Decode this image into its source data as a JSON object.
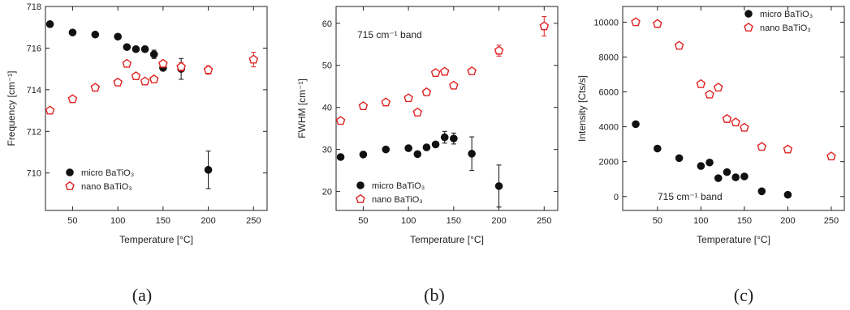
{
  "chart_data": [
    {
      "type": "scatter",
      "panel_label": "(a)",
      "xlabel": "Temperature [°C]",
      "ylabel": "Frequency [cm⁻¹]",
      "xlim": [
        20,
        265
      ],
      "ylim": [
        708.2,
        718
      ],
      "xticks": [
        50,
        100,
        150,
        200,
        250
      ],
      "yticks": [
        710,
        712,
        714,
        716,
        718
      ],
      "grid": false,
      "legend_position": "bottom-left",
      "annotation": "",
      "series": [
        {
          "name": "micro BaTiO₃",
          "marker": "filled-circle",
          "color": "#111111",
          "x": [
            25,
            50,
            75,
            100,
            110,
            120,
            130,
            140,
            150,
            170,
            200
          ],
          "y": [
            717.15,
            716.75,
            716.65,
            716.55,
            716.05,
            715.95,
            715.95,
            715.7,
            715.05,
            715.0,
            710.15
          ],
          "err": [
            0,
            0,
            0,
            0.1,
            0,
            0,
            0,
            0.2,
            0,
            0.5,
            0.9
          ]
        },
        {
          "name": "nano BaTiO₃",
          "marker": "open-pentagon",
          "color": "#e02020",
          "x": [
            25,
            50,
            75,
            100,
            110,
            120,
            130,
            140,
            150,
            170,
            200,
            250
          ],
          "y": [
            713.0,
            713.55,
            714.1,
            714.35,
            715.25,
            714.65,
            714.4,
            714.5,
            715.25,
            715.1,
            714.95,
            715.45
          ],
          "err": [
            0,
            0,
            0,
            0,
            0,
            0,
            0,
            0,
            0,
            0.2,
            0.2,
            0.35
          ]
        }
      ]
    },
    {
      "type": "scatter",
      "panel_label": "(b)",
      "xlabel": "Temperature [°C]",
      "ylabel": "FWHM [cm⁻¹]",
      "xlim": [
        20,
        265
      ],
      "ylim": [
        15.5,
        64
      ],
      "xticks": [
        50,
        100,
        150,
        200,
        250
      ],
      "yticks": [
        20,
        30,
        40,
        50,
        60
      ],
      "grid": false,
      "legend_position": "bottom-left",
      "annotation": "715 cm⁻¹ band",
      "series": [
        {
          "name": "micro BaTiO₃",
          "marker": "filled-circle",
          "color": "#111111",
          "x": [
            25,
            50,
            75,
            100,
            110,
            120,
            130,
            140,
            150,
            170,
            200
          ],
          "y": [
            28.2,
            28.8,
            30.0,
            30.3,
            28.9,
            30.5,
            31.2,
            32.9,
            32.6,
            29.0,
            21.3
          ],
          "err": [
            0,
            0,
            0,
            0,
            0,
            0,
            0,
            1.4,
            1.3,
            4.0,
            5.0
          ]
        },
        {
          "name": "nano BaTiO₃",
          "marker": "open-pentagon",
          "color": "#e02020",
          "x": [
            25,
            50,
            75,
            100,
            110,
            120,
            130,
            140,
            150,
            170,
            200,
            250
          ],
          "y": [
            36.8,
            40.3,
            41.2,
            42.2,
            38.8,
            43.6,
            48.2,
            48.5,
            45.2,
            48.6,
            53.5,
            59.3
          ],
          "err": [
            0,
            0,
            0,
            0,
            0,
            0,
            0,
            0,
            0,
            0,
            1.3,
            2.3
          ]
        }
      ]
    },
    {
      "type": "scatter",
      "panel_label": "(c)",
      "xlabel": "Temperature [°C]",
      "ylabel": "Intensity [Cts/s]",
      "xlim": [
        10,
        265
      ],
      "ylim": [
        -800,
        10900
      ],
      "xticks": [
        50,
        100,
        150,
        200,
        250
      ],
      "yticks": [
        0,
        2000,
        4000,
        6000,
        8000,
        10000
      ],
      "grid": false,
      "legend_position": "top-right",
      "annotation": "715 cm⁻¹ band",
      "series": [
        {
          "name": "micro BaTiO₃",
          "marker": "filled-circle",
          "color": "#111111",
          "x": [
            25,
            50,
            75,
            100,
            110,
            120,
            130,
            140,
            150,
            170,
            200
          ],
          "y": [
            4150,
            2750,
            2200,
            1750,
            1950,
            1050,
            1400,
            1100,
            1150,
            300,
            100
          ],
          "err": [
            0,
            0,
            0,
            0,
            0,
            0,
            0,
            0,
            0,
            0,
            0
          ]
        },
        {
          "name": "nano BaTiO₃",
          "marker": "open-pentagon",
          "color": "#e02020",
          "x": [
            25,
            50,
            75,
            100,
            110,
            120,
            130,
            140,
            150,
            170,
            200,
            250
          ],
          "y": [
            10000,
            9900,
            8650,
            6450,
            5850,
            6250,
            4450,
            4250,
            3950,
            2850,
            2700,
            2300
          ],
          "err": [
            0,
            0,
            0,
            0,
            0,
            0,
            0,
            0,
            0,
            0,
            0,
            0
          ]
        }
      ]
    }
  ]
}
